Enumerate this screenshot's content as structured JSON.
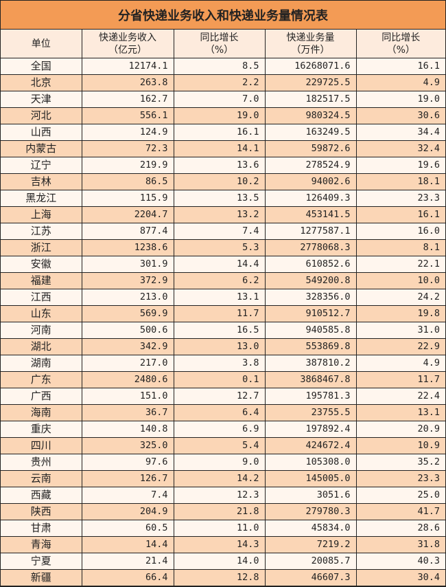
{
  "title": "分省快递业务收入和快递业务量情况表",
  "headers": [
    {
      "line1": "单位",
      "line2": ""
    },
    {
      "line1": "快递业务收入",
      "line2": "（亿元）"
    },
    {
      "line1": "同比增长",
      "line2": "（%）"
    },
    {
      "line1": "快递业务量",
      "line2": "（万件）"
    },
    {
      "line1": "同比增长",
      "line2": "（%）"
    }
  ],
  "colors": {
    "title_bg": "#F39B55",
    "header_bg": "#FDEBDD",
    "row_light": "#FFF6EE",
    "row_dark": "#FBD6B6"
  },
  "rows": [
    [
      "全国",
      "12174.1",
      "8.5",
      "16268071.6",
      "16.1"
    ],
    [
      "北京",
      "263.8",
      "2.2",
      "229725.5",
      "4.9"
    ],
    [
      "天津",
      "162.7",
      "7.0",
      "182517.5",
      "19.0"
    ],
    [
      "河北",
      "556.1",
      "19.0",
      "980324.5",
      "30.6"
    ],
    [
      "山西",
      "124.9",
      "16.1",
      "163249.5",
      "34.4"
    ],
    [
      "内蒙古",
      "72.3",
      "14.1",
      "59872.6",
      "32.4"
    ],
    [
      "辽宁",
      "219.9",
      "13.6",
      "278524.9",
      "19.6"
    ],
    [
      "吉林",
      "86.5",
      "10.2",
      "94002.6",
      "18.1"
    ],
    [
      "黑龙江",
      "115.9",
      "13.5",
      "126409.3",
      "23.3"
    ],
    [
      "上海",
      "2204.7",
      "13.2",
      "453141.5",
      "16.1"
    ],
    [
      "江苏",
      "877.4",
      "7.4",
      "1277587.1",
      "16.0"
    ],
    [
      "浙江",
      "1238.6",
      "5.3",
      "2778068.3",
      "8.1"
    ],
    [
      "安徽",
      "301.9",
      "14.4",
      "610852.6",
      "22.1"
    ],
    [
      "福建",
      "372.9",
      "6.2",
      "549200.8",
      "10.0"
    ],
    [
      "江西",
      "213.0",
      "13.1",
      "328356.0",
      "24.2"
    ],
    [
      "山东",
      "569.9",
      "11.7",
      "910512.7",
      "19.8"
    ],
    [
      "河南",
      "500.6",
      "16.5",
      "940585.8",
      "31.0"
    ],
    [
      "湖北",
      "342.9",
      "13.0",
      "553869.8",
      "22.9"
    ],
    [
      "湖南",
      "217.0",
      "3.8",
      "387810.2",
      "4.9"
    ],
    [
      "广东",
      "2480.6",
      "0.1",
      "3868467.8",
      "11.7"
    ],
    [
      "广西",
      "151.0",
      "12.7",
      "195781.3",
      "22.4"
    ],
    [
      "海南",
      "36.7",
      "6.4",
      "23755.5",
      "13.1"
    ],
    [
      "重庆",
      "140.8",
      "6.9",
      "197892.4",
      "20.9"
    ],
    [
      "四川",
      "325.0",
      "5.4",
      "424672.4",
      "10.9"
    ],
    [
      "贵州",
      "97.6",
      "9.0",
      "105308.0",
      "35.2"
    ],
    [
      "云南",
      "126.7",
      "14.2",
      "145005.0",
      "23.3"
    ],
    [
      "西藏",
      "7.4",
      "12.3",
      "3051.6",
      "25.0"
    ],
    [
      "陕西",
      "204.9",
      "21.8",
      "279780.3",
      "41.7"
    ],
    [
      "甘肃",
      "60.5",
      "11.0",
      "45834.0",
      "28.6"
    ],
    [
      "青海",
      "14.4",
      "14.3",
      "7219.2",
      "31.8"
    ],
    [
      "宁夏",
      "21.4",
      "14.0",
      "20085.7",
      "40.3"
    ],
    [
      "新疆",
      "66.4",
      "12.8",
      "46607.3",
      "30.4"
    ]
  ]
}
